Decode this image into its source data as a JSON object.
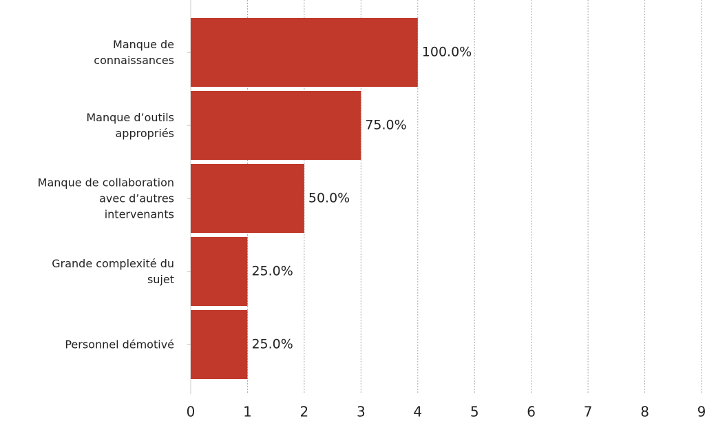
{
  "chart_data": {
    "type": "barh",
    "categories": [
      "Manque de connaissances",
      "Manque d’outils appropriés",
      "Manque de collaboration avec d’autres intervenants",
      "Grande complexité du sujet",
      "Personnel démotivé"
    ],
    "values": [
      4,
      3,
      2,
      1,
      1
    ],
    "percent_labels": [
      "100.0%",
      "75.0%",
      "50.0%",
      "25.0%",
      "25.0%"
    ],
    "color": "#c0392b",
    "xlim": [
      0,
      9
    ],
    "xticks": [
      0,
      1,
      2,
      3,
      4,
      5,
      6,
      7,
      8,
      9
    ],
    "grid": true
  }
}
